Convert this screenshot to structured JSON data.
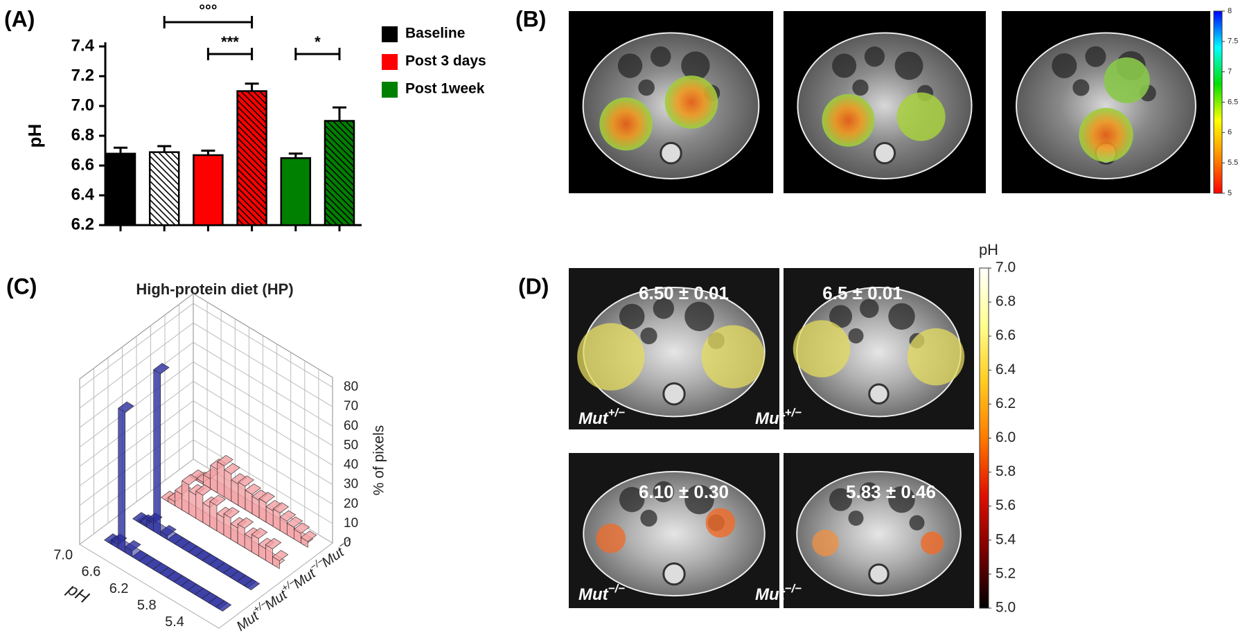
{
  "figure": {
    "panel_labels": [
      "(A)",
      "(B)",
      "(C)",
      "(D)"
    ]
  },
  "chart_data": [
    {
      "type": "bar",
      "ylabel": "pH",
      "ylim": [
        6.2,
        7.4
      ],
      "yticks": [
        6.2,
        6.4,
        6.6,
        6.8,
        {
          "value": 7,
          "label": "7.0"
        },
        7.2,
        7.4
      ],
      "hatched": [
        false,
        true
      ],
      "legend": "right",
      "series": [
        {
          "name": "Baseline",
          "color": "#000000",
          "hatch_fill": "#ffffff",
          "values": [
            6.68,
            6.69
          ],
          "errors": [
            0.04,
            0.04
          ]
        },
        {
          "name": "Post 3 days",
          "color": "#ff0000",
          "hatch_fill": "#ff0000",
          "values": [
            6.67,
            7.1
          ],
          "errors": [
            0.03,
            0.05
          ]
        },
        {
          "name": "Post 1week",
          "color": "#008000",
          "hatch_fill": "#008000",
          "values": [
            6.65,
            6.9
          ],
          "errors": [
            0.03,
            0.09
          ]
        }
      ],
      "annotations": [
        "°°°",
        "***",
        "*"
      ]
    },
    {
      "type": "colorbar",
      "colormap": [
        "#ff0000",
        "#ff8c00",
        "#ffff00",
        "#00e000",
        "#00ffff",
        "#0000ff"
      ],
      "ylim": [
        5,
        8
      ],
      "yticks": [
        5,
        5.5,
        6,
        6.5,
        7,
        7.5,
        8
      ]
    },
    {
      "type": "bar3d",
      "title": "High-protein diet (HP)",
      "xlabel": "pH",
      "zlabel": "% of pixels",
      "xlim": [
        7.2,
        5.2
      ],
      "xticks": [
        {
          "value": 7,
          "label": "7.0"
        },
        6.6,
        6.2,
        5.8,
        5.4
      ],
      "zlim": [
        0,
        85
      ],
      "zticks": [
        0,
        10,
        20,
        30,
        40,
        50,
        60,
        70,
        80
      ],
      "grid": true,
      "x": [
        7.0,
        6.9,
        6.8,
        6.7,
        6.6,
        6.5,
        6.4,
        6.3,
        6.2,
        6.1,
        6.0,
        5.9,
        5.8,
        5.7,
        5.6,
        5.5,
        5.4
      ],
      "series": [
        {
          "name": "Mut+/−",
          "color": "#2a2e9e",
          "values": [
            0,
            2,
            72,
            3,
            0,
            0,
            0,
            0,
            0,
            0,
            0,
            0,
            0,
            0,
            0,
            0,
            0
          ]
        },
        {
          "name": "Mut+/−",
          "color": "#2a2e9e",
          "values": [
            0,
            1,
            4,
            83,
            2,
            0,
            0,
            0,
            0,
            0,
            0,
            0,
            0,
            0,
            0,
            0,
            0
          ]
        },
        {
          "name": "Mut−/−",
          "color": "#f4a0a4",
          "values": [
            0,
            2,
            8,
            15,
            12,
            14,
            10,
            13,
            9,
            11,
            8,
            10,
            7,
            9,
            6,
            8,
            4
          ]
        },
        {
          "name": "Mut−/−",
          "color": "#f4a0a4",
          "values": [
            0,
            1,
            5,
            12,
            16,
            14,
            11,
            12,
            10,
            9,
            10,
            8,
            9,
            7,
            6,
            5,
            3
          ]
        }
      ]
    },
    {
      "type": "colorbar",
      "label": "pH",
      "colormap": [
        "#000000",
        "#7a0000",
        "#e01000",
        "#ff7a00",
        "#ffcc20",
        "#ffff90",
        "#ffffff"
      ],
      "ylim": [
        5,
        7
      ],
      "yticks": [
        {
          "value": 5,
          "label": "5.0"
        },
        5.2,
        5.4,
        5.6,
        5.8,
        {
          "value": 6,
          "label": "6.0"
        },
        6.2,
        6.4,
        6.6,
        6.8,
        {
          "value": 7,
          "label": "7.0"
        }
      ],
      "annotations": [
        "6.50 ± 0.01",
        "6.5 ± 0.01",
        "6.10 ± 0.30",
        "5.83 ± 0.46"
      ],
      "image_labels": [
        "Mut+/−",
        "Mut+/−",
        "Mut−/−",
        "Mut−/−"
      ]
    }
  ]
}
